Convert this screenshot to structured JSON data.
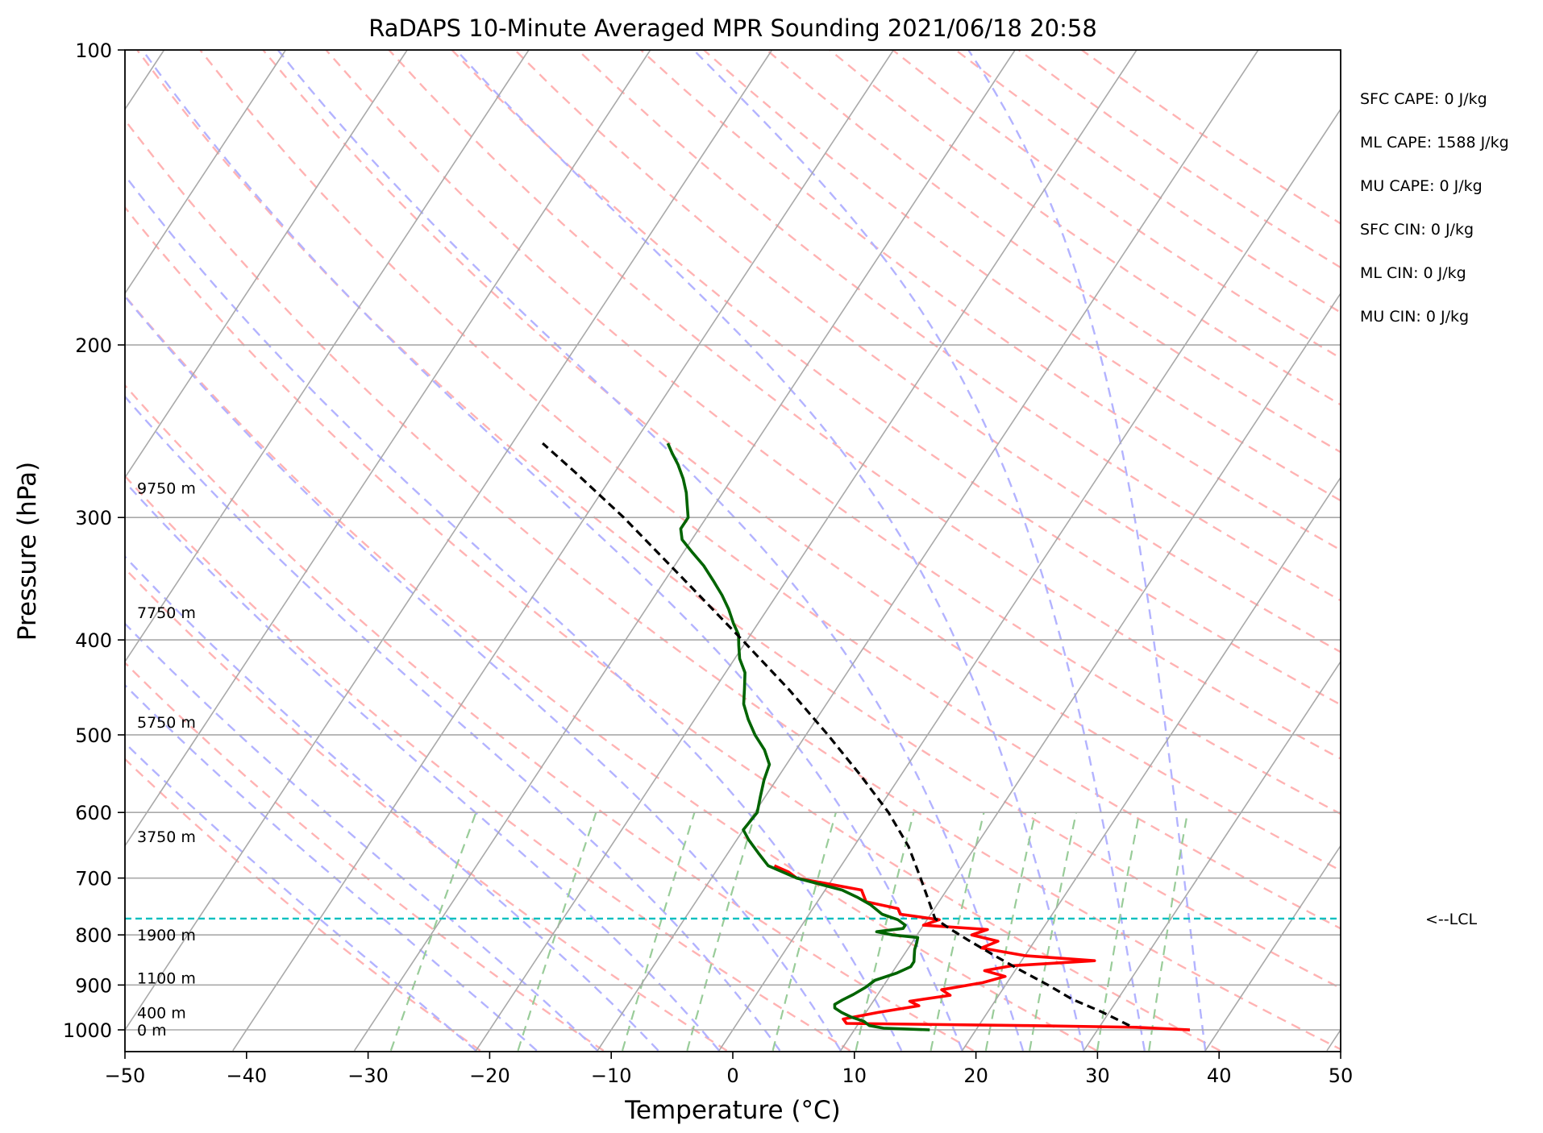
{
  "chart_data": {
    "type": "line",
    "chart_kind": "Skew-T log-P sounding",
    "title": "RaDAPS 10-Minute Averaged MPR Sounding 2021/06/18 20:58",
    "xlabel": "Temperature (°C)",
    "ylabel": "Pressure (hPa)",
    "x_ticks": [
      -50,
      -40,
      -30,
      -20,
      -10,
      0,
      10,
      20,
      30,
      40,
      50
    ],
    "y_ticks": [
      100,
      200,
      300,
      400,
      500,
      600,
      700,
      800,
      900,
      1000
    ],
    "xlim": [
      -50,
      50
    ],
    "ylim": [
      1050,
      100
    ],
    "y_scale": "log",
    "grid": true,
    "series": [
      {
        "role": "temperature",
        "color": "#ff0000",
        "points": [
          [
            1000,
            37.6
          ],
          [
            994,
            33.0
          ],
          [
            990,
            24.0
          ],
          [
            985,
            9.0
          ],
          [
            975,
            8.5
          ],
          [
            960,
            11.0
          ],
          [
            945,
            14.0
          ],
          [
            935,
            13.0
          ],
          [
            922,
            16.0
          ],
          [
            910,
            15.0
          ],
          [
            895,
            18.0
          ],
          [
            882,
            19.5
          ],
          [
            870,
            17.5
          ],
          [
            860,
            19.5
          ],
          [
            850,
            26.0
          ],
          [
            840,
            20.0
          ],
          [
            825,
            16.0
          ],
          [
            812,
            17.0
          ],
          [
            800,
            14.5
          ],
          [
            790,
            15.5
          ],
          [
            782,
            10.0
          ],
          [
            772,
            11.0
          ],
          [
            762,
            7.5
          ],
          [
            752,
            7.0
          ],
          [
            740,
            4.0
          ],
          [
            720,
            3.0
          ],
          [
            700,
            -3.0
          ],
          [
            690,
            -4.0
          ],
          [
            680,
            -5.5
          ]
        ]
      },
      {
        "role": "dewpoint",
        "color": "#006400",
        "points": [
          [
            1000,
            16.2
          ],
          [
            996,
            12.3
          ],
          [
            990,
            11.0
          ],
          [
            980,
            10.3
          ],
          [
            970,
            9.0
          ],
          [
            960,
            8.0
          ],
          [
            950,
            7.2
          ],
          [
            942,
            7.0
          ],
          [
            932,
            7.4
          ],
          [
            920,
            8.0
          ],
          [
            905,
            8.6
          ],
          [
            890,
            9.0
          ],
          [
            875,
            10.4
          ],
          [
            862,
            11.2
          ],
          [
            852,
            11.2
          ],
          [
            840,
            10.9
          ],
          [
            828,
            10.6
          ],
          [
            815,
            10.4
          ],
          [
            805,
            10.2
          ],
          [
            800,
            8.0
          ],
          [
            794,
            6.5
          ],
          [
            788,
            8.5
          ],
          [
            782,
            8.5
          ],
          [
            772,
            7.6
          ],
          [
            762,
            6.0
          ],
          [
            745,
            4.5
          ],
          [
            732,
            3.0
          ],
          [
            720,
            1.4
          ],
          [
            700,
            -3.0
          ],
          [
            680,
            -6.0
          ],
          [
            660,
            -7.5
          ],
          [
            640,
            -9.0
          ],
          [
            625,
            -10.0
          ],
          [
            600,
            -9.8
          ],
          [
            578,
            -10.4
          ],
          [
            556,
            -11.0
          ],
          [
            536,
            -11.4
          ],
          [
            518,
            -12.6
          ],
          [
            500,
            -14.2
          ],
          [
            482,
            -15.6
          ],
          [
            465,
            -16.8
          ],
          [
            448,
            -17.6
          ],
          [
            432,
            -18.4
          ],
          [
            418,
            -19.6
          ],
          [
            405,
            -20.4
          ],
          [
            395,
            -21.0
          ],
          [
            385,
            -22.0
          ],
          [
            372,
            -23.2
          ],
          [
            360,
            -24.5
          ],
          [
            348,
            -26.0
          ],
          [
            336,
            -27.6
          ],
          [
            326,
            -29.2
          ],
          [
            316,
            -30.8
          ],
          [
            308,
            -31.5
          ],
          [
            300,
            -31.5
          ],
          [
            292,
            -32.2
          ],
          [
            283,
            -33.0
          ],
          [
            274,
            -34.0
          ],
          [
            265,
            -35.2
          ],
          [
            258,
            -36.3
          ],
          [
            252,
            -37.2
          ]
        ]
      },
      {
        "role": "parcel",
        "color": "#000000",
        "dashed": true,
        "points": [
          [
            990,
            32.4
          ],
          [
            960,
            29.5
          ],
          [
            930,
            26.2
          ],
          [
            900,
            23.5
          ],
          [
            870,
            20.5
          ],
          [
            840,
            17.5
          ],
          [
            810,
            14.5
          ],
          [
            790,
            12.5
          ],
          [
            770,
            10.6
          ],
          [
            700,
            7.2
          ],
          [
            650,
            4.5
          ],
          [
            600,
            1.0
          ],
          [
            550,
            -3.3
          ],
          [
            500,
            -8.2
          ],
          [
            450,
            -13.8
          ],
          [
            400,
            -20.4
          ],
          [
            350,
            -28.0
          ],
          [
            300,
            -36.8
          ],
          [
            270,
            -43.2
          ],
          [
            252,
            -47.5
          ]
        ]
      }
    ],
    "lcl": {
      "pressure_hpa": 770,
      "label": "<--LCL"
    },
    "height_labels": [
      {
        "pressure_hpa": 1000,
        "label": "0 m"
      },
      {
        "pressure_hpa": 960,
        "label": "400 m"
      },
      {
        "pressure_hpa": 885,
        "label": "1100 m"
      },
      {
        "pressure_hpa": 800,
        "label": "1900 m"
      },
      {
        "pressure_hpa": 635,
        "label": "3750 m"
      },
      {
        "pressure_hpa": 485,
        "label": "5750 m"
      },
      {
        "pressure_hpa": 375,
        "label": "7750 m"
      },
      {
        "pressure_hpa": 280,
        "label": "9750 m"
      }
    ],
    "annotations": [
      "SFC CAPE: 0 J/kg",
      "ML CAPE: 1588 J/kg",
      "MU CAPE: 0 J/kg",
      "SFC CIN: 0 J/kg",
      "ML CIN: 0 J/kg",
      "MU CIN: 0 J/kg"
    ],
    "background_lines": {
      "isotherms_color": "#a9a9a9",
      "dry_adiabats_color": "#ffb3b3",
      "moist_adiabats_color": "#b3b3ff",
      "mixing_ratio_color": "#99cc99",
      "lcl_line_color": "#00bfbf"
    },
    "legend": "none"
  }
}
